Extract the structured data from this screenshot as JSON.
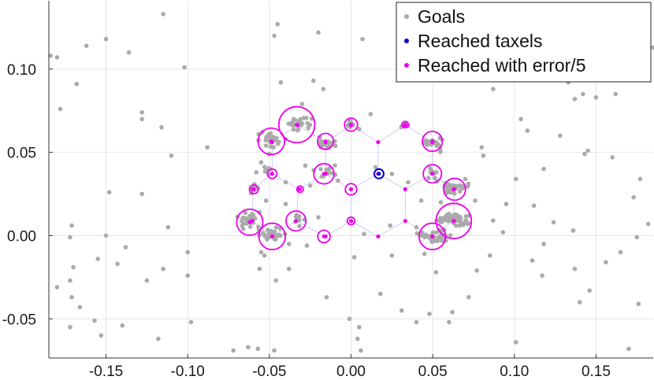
{
  "chart_data": {
    "type": "scatter",
    "title": "",
    "xlabel": "",
    "ylabel": "",
    "xlim": [
      -0.185,
      0.185
    ],
    "ylim": [
      -0.0735,
      0.141
    ],
    "grid": true,
    "legend_position": "top-right",
    "x_ticks": [
      {
        "value": -0.15,
        "label": "-0.15"
      },
      {
        "value": -0.1,
        "label": "-0.10"
      },
      {
        "value": -0.05,
        "label": "-0.05"
      },
      {
        "value": 0.0,
        "label": "0.00"
      },
      {
        "value": 0.05,
        "label": "0.05"
      },
      {
        "value": 0.1,
        "label": "0.10"
      },
      {
        "value": 0.15,
        "label": "0.15"
      }
    ],
    "y_ticks": [
      {
        "value": -0.05,
        "label": "-0.05"
      },
      {
        "value": 0.0,
        "label": "0.00"
      },
      {
        "value": 0.05,
        "label": "0.05"
      },
      {
        "value": 0.1,
        "label": "0.10"
      }
    ],
    "colors": {
      "goals": "#aaaaaa",
      "reached": "#0000cc",
      "error": "#ee00ee",
      "mesh": "#c8c8ee",
      "grid": "#e6e6e6",
      "axis": "#333333"
    },
    "legend": [
      {
        "label": "Goals",
        "color": "#aaaaaa"
      },
      {
        "label": "Reached taxels",
        "color": "#0000cc"
      },
      {
        "label": "Reached with error/5",
        "color": "#ee00ee"
      }
    ],
    "taxels": [
      {
        "x": -0.06,
        "y": 0.0278
      },
      {
        "x": -0.0483,
        "y": 0.0371
      },
      {
        "x": -0.0322,
        "y": 0.0278
      },
      {
        "x": -0.0156,
        "y": 0.0371
      },
      {
        "x": 0.0,
        "y": 0.0278
      },
      {
        "x": 0.0166,
        "y": 0.0371
      },
      {
        "x": 0.0332,
        "y": 0.0278
      },
      {
        "x": 0.0498,
        "y": 0.0371
      },
      {
        "x": 0.0629,
        "y": 0.0278
      },
      {
        "x": -0.0605,
        "y": 0.0088
      },
      {
        "x": -0.0337,
        "y": 0.0088
      },
      {
        "x": -0.0156,
        "y": -0.0005
      },
      {
        "x": 0.0,
        "y": 0.0088
      },
      {
        "x": 0.0166,
        "y": -0.0005
      },
      {
        "x": 0.0332,
        "y": 0.0088
      },
      {
        "x": 0.0498,
        "y": -0.0005
      },
      {
        "x": 0.0629,
        "y": 0.0088
      },
      {
        "x": -0.0483,
        "y": -0.0005
      },
      {
        "x": -0.0483,
        "y": 0.0561
      },
      {
        "x": -0.0327,
        "y": 0.0663
      },
      {
        "x": -0.0156,
        "y": 0.0561
      },
      {
        "x": 0.0,
        "y": 0.0663
      },
      {
        "x": 0.0166,
        "y": 0.0561
      },
      {
        "x": 0.0332,
        "y": 0.0663
      },
      {
        "x": 0.0498,
        "y": 0.0561
      }
    ],
    "reached_taxels": [
      {
        "x": 0.0171,
        "y": 0.0371
      }
    ],
    "reached_with_error": [
      {
        "x": -0.0595,
        "y": 0.0278,
        "error": 0.0027
      },
      {
        "x": -0.0483,
        "y": 0.0371,
        "error": 0.0029
      },
      {
        "x": -0.0312,
        "y": 0.0278,
        "error": 0.002
      },
      {
        "x": -0.0166,
        "y": 0.0371,
        "error": 0.0062
      },
      {
        "x": 0.0,
        "y": 0.0278,
        "error": 0.0035
      },
      {
        "x": 0.0498,
        "y": 0.0371,
        "error": 0.0056
      },
      {
        "x": 0.0634,
        "y": 0.0278,
        "error": 0.0067
      },
      {
        "x": -0.062,
        "y": 0.008,
        "error": 0.008
      },
      {
        "x": -0.0337,
        "y": 0.0088,
        "error": 0.0061
      },
      {
        "x": -0.0166,
        "y": -0.0005,
        "error": 0.0038
      },
      {
        "x": 0.0,
        "y": 0.0088,
        "error": 0.0023
      },
      {
        "x": 0.0498,
        "y": -0.0005,
        "error": 0.0081
      },
      {
        "x": 0.0629,
        "y": 0.0088,
        "error": 0.0108
      },
      {
        "x": -0.0483,
        "y": -0.0005,
        "error": 0.0081
      },
      {
        "x": -0.0488,
        "y": 0.0566,
        "error": 0.0081
      },
      {
        "x": -0.0332,
        "y": 0.0666,
        "error": 0.011
      },
      {
        "x": -0.0156,
        "y": 0.0566,
        "error": 0.0049
      },
      {
        "x": 0.0,
        "y": 0.0666,
        "error": 0.004
      },
      {
        "x": 0.0332,
        "y": 0.0666,
        "error": 0.002
      },
      {
        "x": 0.0498,
        "y": 0.0566,
        "error": 0.0061
      }
    ],
    "goal_clusters": [
      {
        "x": -0.0595,
        "y": 0.0283,
        "sx": 0.0018,
        "sy": 0.0015,
        "n": 14
      },
      {
        "x": -0.0512,
        "y": 0.0385,
        "sx": 0.0018,
        "sy": 0.0012,
        "n": 8
      },
      {
        "x": -0.063,
        "y": 0.0094,
        "sx": 0.0034,
        "sy": 0.002,
        "n": 30
      },
      {
        "x": -0.049,
        "y": 0.0012,
        "sx": 0.0032,
        "sy": 0.0018,
        "n": 28
      },
      {
        "x": -0.0488,
        "y": 0.0568,
        "sx": 0.004,
        "sy": 0.0022,
        "n": 26
      },
      {
        "x": -0.0322,
        "y": 0.068,
        "sx": 0.0036,
        "sy": 0.0017,
        "n": 26
      },
      {
        "x": -0.016,
        "y": 0.0565,
        "sx": 0.0028,
        "sy": 0.0016,
        "n": 16
      },
      {
        "x": -0.016,
        "y": 0.038,
        "sx": 0.003,
        "sy": 0.0022,
        "n": 12
      },
      {
        "x": -0.033,
        "y": 0.01,
        "sx": 0.003,
        "sy": 0.0025,
        "n": 8
      },
      {
        "x": 0.0,
        "y": 0.067,
        "sx": 0.002,
        "sy": 0.0012,
        "n": 6
      },
      {
        "x": 0.033,
        "y": 0.067,
        "sx": 0.0012,
        "sy": 0.001,
        "n": 5
      },
      {
        "x": 0.05,
        "y": 0.0555,
        "sx": 0.0032,
        "sy": 0.002,
        "n": 18
      },
      {
        "x": 0.05,
        "y": 0.0375,
        "sx": 0.0025,
        "sy": 0.002,
        "n": 10
      },
      {
        "x": 0.0625,
        "y": 0.0285,
        "sx": 0.0038,
        "sy": 0.0018,
        "n": 38
      },
      {
        "x": 0.064,
        "y": 0.0098,
        "sx": 0.0045,
        "sy": 0.0018,
        "n": 52
      },
      {
        "x": 0.052,
        "y": -0.0005,
        "sx": 0.0048,
        "sy": 0.0018,
        "n": 42
      }
    ],
    "goals": [
      {
        "x": -0.184,
        "y": 0.108
      },
      {
        "x": -0.18,
        "y": 0.107
      },
      {
        "x": -0.178,
        "y": 0.076
      },
      {
        "x": -0.162,
        "y": 0.114
      },
      {
        "x": -0.15,
        "y": 0.118
      },
      {
        "x": -0.136,
        "y": 0.11
      },
      {
        "x": -0.168,
        "y": 0.091
      },
      {
        "x": -0.115,
        "y": 0.133
      },
      {
        "x": -0.102,
        "y": 0.101
      },
      {
        "x": -0.128,
        "y": 0.074
      },
      {
        "x": -0.128,
        "y": 0.07
      },
      {
        "x": -0.116,
        "y": 0.065
      },
      {
        "x": -0.11,
        "y": 0.048
      },
      {
        "x": -0.088,
        "y": 0.053
      },
      {
        "x": -0.148,
        "y": 0.026
      },
      {
        "x": -0.128,
        "y": 0.025
      },
      {
        "x": -0.112,
        "y": 0.005
      },
      {
        "x": -0.171,
        "y": 0.006
      },
      {
        "x": -0.172,
        "y": -0.001
      },
      {
        "x": -0.15,
        "y": 0.0
      },
      {
        "x": -0.138,
        "y": -0.007
      },
      {
        "x": -0.155,
        "y": -0.014
      },
      {
        "x": -0.143,
        "y": -0.017
      },
      {
        "x": -0.17,
        "y": -0.019
      },
      {
        "x": -0.172,
        "y": -0.027
      },
      {
        "x": -0.18,
        "y": -0.031
      },
      {
        "x": -0.171,
        "y": -0.037
      },
      {
        "x": -0.166,
        "y": -0.043
      },
      {
        "x": -0.157,
        "y": -0.051
      },
      {
        "x": -0.172,
        "y": -0.055
      },
      {
        "x": -0.153,
        "y": -0.06
      },
      {
        "x": -0.14,
        "y": -0.054
      },
      {
        "x": -0.118,
        "y": -0.062
      },
      {
        "x": -0.098,
        "y": -0.052
      },
      {
        "x": -0.125,
        "y": -0.027
      },
      {
        "x": -0.115,
        "y": -0.02
      },
      {
        "x": -0.1,
        "y": -0.024
      },
      {
        "x": -0.1,
        "y": -0.01
      },
      {
        "x": -0.072,
        "y": -0.069
      },
      {
        "x": -0.063,
        "y": -0.067
      },
      {
        "x": -0.057,
        "y": -0.068
      },
      {
        "x": -0.047,
        "y": -0.069
      },
      {
        "x": -0.056,
        "y": -0.02
      },
      {
        "x": -0.046,
        "y": -0.027
      },
      {
        "x": -0.038,
        "y": -0.02
      },
      {
        "x": -0.015,
        "y": -0.037
      },
      {
        "x": -0.001,
        "y": -0.05
      },
      {
        "x": 0.005,
        "y": -0.055
      },
      {
        "x": 0.004,
        "y": -0.062
      },
      {
        "x": 0.006,
        "y": -0.069
      },
      {
        "x": 0.018,
        "y": -0.035
      },
      {
        "x": 0.031,
        "y": -0.045
      },
      {
        "x": 0.04,
        "y": -0.052
      },
      {
        "x": 0.048,
        "y": -0.047
      },
      {
        "x": 0.06,
        "y": -0.052
      },
      {
        "x": 0.062,
        "y": -0.046
      },
      {
        "x": 0.072,
        "y": -0.037
      },
      {
        "x": 0.077,
        "y": -0.021
      },
      {
        "x": 0.085,
        "y": -0.012
      },
      {
        "x": 0.093,
        "y": 0.002
      },
      {
        "x": 0.101,
        "y": -0.064
      },
      {
        "x": 0.111,
        "y": -0.015
      },
      {
        "x": 0.117,
        "y": -0.024
      },
      {
        "x": 0.118,
        "y": -0.005
      },
      {
        "x": 0.124,
        "y": 0.008
      },
      {
        "x": 0.136,
        "y": 0.003
      },
      {
        "x": 0.137,
        "y": -0.02
      },
      {
        "x": 0.14,
        "y": -0.04
      },
      {
        "x": 0.146,
        "y": -0.033
      },
      {
        "x": 0.156,
        "y": -0.016
      },
      {
        "x": 0.165,
        "y": -0.01
      },
      {
        "x": 0.17,
        "y": -0.068
      },
      {
        "x": 0.176,
        "y": -0.041
      },
      {
        "x": 0.175,
        "y": -0.001
      },
      {
        "x": 0.182,
        "y": 0.007
      },
      {
        "x": 0.173,
        "y": 0.023
      },
      {
        "x": 0.177,
        "y": 0.034
      },
      {
        "x": 0.16,
        "y": 0.047
      },
      {
        "x": 0.145,
        "y": 0.051
      },
      {
        "x": 0.143,
        "y": 0.049
      },
      {
        "x": 0.128,
        "y": 0.06
      },
      {
        "x": 0.108,
        "y": 0.063
      },
      {
        "x": 0.104,
        "y": 0.07
      },
      {
        "x": 0.118,
        "y": 0.04
      },
      {
        "x": 0.101,
        "y": 0.034
      },
      {
        "x": 0.112,
        "y": 0.018
      },
      {
        "x": 0.095,
        "y": 0.019
      },
      {
        "x": 0.087,
        "y": 0.009
      },
      {
        "x": 0.07,
        "y": 0.034
      },
      {
        "x": 0.076,
        "y": 0.021
      },
      {
        "x": 0.08,
        "y": 0.053
      },
      {
        "x": 0.081,
        "y": 0.048
      },
      {
        "x": 0.142,
        "y": 0.085
      },
      {
        "x": 0.15,
        "y": 0.083
      },
      {
        "x": 0.133,
        "y": 0.092
      },
      {
        "x": 0.137,
        "y": 0.082
      },
      {
        "x": 0.162,
        "y": 0.085
      },
      {
        "x": 0.185,
        "y": 0.113
      },
      {
        "x": 0.139,
        "y": 0.131
      },
      {
        "x": 0.1,
        "y": 0.134
      },
      {
        "x": 0.087,
        "y": 0.088
      },
      {
        "x": 0.007,
        "y": 0.118
      },
      {
        "x": -0.02,
        "y": 0.122
      },
      {
        "x": -0.045,
        "y": 0.127
      },
      {
        "x": -0.047,
        "y": 0.12
      },
      {
        "x": -0.043,
        "y": 0.092
      },
      {
        "x": -0.023,
        "y": 0.093
      },
      {
        "x": -0.017,
        "y": 0.088
      },
      {
        "x": -0.03,
        "y": 0.079
      },
      {
        "x": 0.012,
        "y": 0.073
      },
      {
        "x": 0.005,
        "y": 0.064
      },
      {
        "x": -0.04,
        "y": 0.058
      },
      {
        "x": -0.05,
        "y": 0.049
      },
      {
        "x": -0.058,
        "y": 0.038
      },
      {
        "x": -0.055,
        "y": 0.044
      },
      {
        "x": -0.04,
        "y": 0.032
      },
      {
        "x": -0.028,
        "y": 0.042
      },
      {
        "x": -0.025,
        "y": 0.03
      },
      {
        "x": -0.008,
        "y": 0.033
      },
      {
        "x": 0.015,
        "y": 0.041
      },
      {
        "x": 0.025,
        "y": 0.037
      },
      {
        "x": 0.035,
        "y": 0.032
      },
      {
        "x": 0.043,
        "y": 0.021
      },
      {
        "x": 0.055,
        "y": 0.02
      },
      {
        "x": 0.06,
        "y": 0.013
      },
      {
        "x": 0.04,
        "y": 0.005
      },
      {
        "x": 0.024,
        "y": 0.006
      },
      {
        "x": 0.008,
        "y": 0.001
      },
      {
        "x": -0.02,
        "y": 0.011
      },
      {
        "x": -0.04,
        "y": 0.019
      },
      {
        "x": -0.052,
        "y": 0.021
      },
      {
        "x": -0.056,
        "y": 0.014
      },
      {
        "x": -0.066,
        "y": 0.004
      },
      {
        "x": -0.038,
        "y": -0.005
      },
      {
        "x": -0.027,
        "y": -0.006
      },
      {
        "x": -0.055,
        "y": -0.01
      },
      {
        "x": -0.053,
        "y": -0.012
      },
      {
        "x": 0.002,
        "y": -0.013
      },
      {
        "x": 0.025,
        "y": -0.012
      },
      {
        "x": 0.045,
        "y": -0.011
      },
      {
        "x": 0.052,
        "y": -0.022
      }
    ]
  }
}
